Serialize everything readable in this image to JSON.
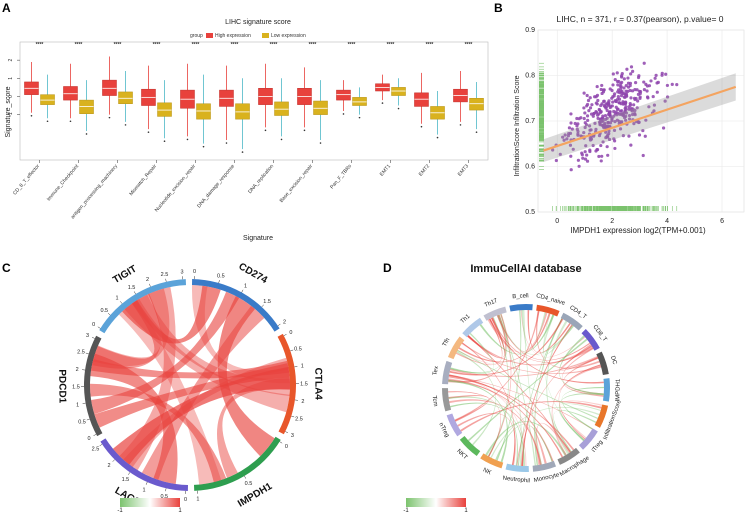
{
  "panels": {
    "a": "A",
    "b": "B",
    "c": "C",
    "d": "D"
  },
  "chart_data": [
    {
      "id": "A",
      "type": "box",
      "title": "LIHC signature score",
      "xlabel": "Signature",
      "ylabel": "Signature_score",
      "legend_title": "group",
      "ylim": [
        -3.5,
        3
      ],
      "yticks": [
        "-1",
        "0",
        "1",
        "2"
      ],
      "legend_position": "top",
      "significance": "****",
      "categories": [
        "CD_8_T_effector",
        "Immune_Checkpoint",
        "antigen_processing_machinery",
        "Mismatch_Repair",
        "Nucleotide_excision_repair",
        "DNA_damage_response",
        "DNA_replication",
        "Base_excision_repair",
        "Pan_F_TBRs",
        "EMT1",
        "EMT2",
        "EMT3"
      ],
      "series": [
        {
          "name": "High expression",
          "color": "#E8413C",
          "values": [
            {
              "q1": 0.1,
              "median": 0.45,
              "q3": 0.8,
              "lo": -0.9,
              "hi": 1.9
            },
            {
              "q1": -0.2,
              "median": 0.15,
              "q3": 0.55,
              "lo": -1.2,
              "hi": 1.8
            },
            {
              "q1": 0.05,
              "median": 0.45,
              "q3": 0.9,
              "lo": -1.0,
              "hi": 2.2
            },
            {
              "q1": -0.5,
              "median": -0.05,
              "q3": 0.4,
              "lo": -1.8,
              "hi": 1.7
            },
            {
              "q1": -0.65,
              "median": -0.15,
              "q3": 0.35,
              "lo": -2.2,
              "hi": 1.8
            },
            {
              "q1": -0.55,
              "median": -0.1,
              "q3": 0.35,
              "lo": -2.4,
              "hi": 1.7
            },
            {
              "q1": -0.45,
              "median": 0.0,
              "q3": 0.45,
              "lo": -1.7,
              "hi": 1.8
            },
            {
              "q1": -0.45,
              "median": 0.0,
              "q3": 0.45,
              "lo": -1.7,
              "hi": 1.6
            },
            {
              "q1": -0.2,
              "median": 0.1,
              "q3": 0.35,
              "lo": -0.8,
              "hi": 0.9
            },
            {
              "q1": 0.3,
              "median": 0.5,
              "q3": 0.7,
              "lo": -0.2,
              "hi": 1.2
            },
            {
              "q1": -0.55,
              "median": -0.15,
              "q3": 0.2,
              "lo": -1.5,
              "hi": 1.3
            },
            {
              "q1": -0.3,
              "median": 0.05,
              "q3": 0.4,
              "lo": -1.4,
              "hi": 1.4
            }
          ]
        },
        {
          "name": "Low expression",
          "color": "#D9B21E",
          "values": [
            {
              "q1": -0.45,
              "median": -0.2,
              "q3": 0.1,
              "lo": -1.2,
              "hi": 1.2
            },
            {
              "q1": -0.95,
              "median": -0.55,
              "q3": -0.2,
              "lo": -1.9,
              "hi": 0.9
            },
            {
              "q1": -0.4,
              "median": -0.1,
              "q3": 0.25,
              "lo": -1.4,
              "hi": 1.4
            },
            {
              "q1": -1.1,
              "median": -0.75,
              "q3": -0.35,
              "lo": -2.3,
              "hi": 0.9
            },
            {
              "q1": -1.25,
              "median": -0.8,
              "q3": -0.4,
              "lo": -2.6,
              "hi": 1.2
            },
            {
              "q1": -1.25,
              "median": -0.85,
              "q3": -0.4,
              "lo": -2.9,
              "hi": 1.0
            },
            {
              "q1": -1.05,
              "median": -0.7,
              "q3": -0.3,
              "lo": -2.2,
              "hi": 1.0
            },
            {
              "q1": -1.0,
              "median": -0.65,
              "q3": -0.25,
              "lo": -2.4,
              "hi": 0.9
            },
            {
              "q1": -0.5,
              "median": -0.3,
              "q3": -0.05,
              "lo": -1.0,
              "hi": 0.5
            },
            {
              "q1": 0.05,
              "median": 0.3,
              "q3": 0.5,
              "lo": -0.5,
              "hi": 1.0
            },
            {
              "q1": -1.25,
              "median": -0.9,
              "q3": -0.55,
              "lo": -2.1,
              "hi": 0.3
            },
            {
              "q1": -0.75,
              "median": -0.4,
              "q3": -0.1,
              "lo": -1.8,
              "hi": 0.8
            }
          ]
        }
      ]
    },
    {
      "id": "B",
      "type": "scatter",
      "title": "LIHC, n = 371, r = 0.37(pearson), p.value= 0",
      "xlabel": "IMPDH1 expression log2(TPM+0.001)",
      "ylabel": "InfiltrationScore Infiltration Score",
      "xlim": [
        -0.7,
        6.8
      ],
      "ylim": [
        0.5,
        0.9
      ],
      "xticks": [
        "0",
        "2",
        "4",
        "6"
      ],
      "yticks": [
        "0.5",
        "0.6",
        "0.7",
        "0.8",
        "0.9"
      ],
      "grid": true,
      "point_color": "#8E44AD",
      "fit_color": "#F4A460",
      "fit": {
        "intercept": 0.66,
        "slope": 0.0135
      },
      "n": 371
    },
    {
      "id": "C",
      "type": "chord",
      "sectors": [
        {
          "name": "CD274",
          "color": "#3A7BC8",
          "ticks": [
            "0",
            "0.5",
            "1",
            "1.5",
            "2"
          ]
        },
        {
          "name": "CTLA4",
          "color": "#E8562A",
          "ticks": [
            "0",
            "0.5",
            "1",
            "1.5",
            "2",
            "2.5",
            "3"
          ]
        },
        {
          "name": "IMPDH1",
          "color": "#2E9E4F",
          "ticks": [
            "0",
            "0.5",
            "1"
          ]
        },
        {
          "name": "LAG3",
          "color": "#6A5ACD",
          "ticks": [
            "0",
            "0.5",
            "1",
            "1.5",
            "2",
            "2.5"
          ]
        },
        {
          "name": "PDCD1",
          "color": "#555555",
          "ticks": [
            "0",
            "0.5",
            "1",
            "1.5",
            "2",
            "2.5",
            "3"
          ]
        },
        {
          "name": "TIGIT",
          "color": "#5BA3D9",
          "ticks": [
            "0",
            "0.5",
            "1",
            "1.5",
            "2",
            "2.5",
            "3"
          ]
        }
      ],
      "legend": {
        "min": "-1",
        "max": "1",
        "low_color": "#7CC36E",
        "high_color": "#E8413C"
      }
    },
    {
      "id": "D",
      "type": "chord",
      "title": "ImmuCellAI database",
      "sectors": [
        {
          "name": "B_cell",
          "color": "#3A7BC8"
        },
        {
          "name": "CD4_naive",
          "color": "#E8562A"
        },
        {
          "name": "CD4_T",
          "color": "#9AA6B8"
        },
        {
          "name": "CD8_T",
          "color": "#6A5ACD"
        },
        {
          "name": "DC",
          "color": "#555555"
        },
        {
          "name": "IMPDH1",
          "color": "#5BA3D9"
        },
        {
          "name": "InfiltrationScore",
          "color": "#E8762A"
        },
        {
          "name": "iTreg",
          "color": "#A8A0D8"
        },
        {
          "name": "Macrophage",
          "color": "#888888"
        },
        {
          "name": "Monocyte",
          "color": "#A0A8B8"
        },
        {
          "name": "Neutrophil",
          "color": "#9AC8E8"
        },
        {
          "name": "NK",
          "color": "#F0A050"
        },
        {
          "name": "NKT",
          "color": "#5CB85C"
        },
        {
          "name": "nTreg",
          "color": "#B0A8E0"
        },
        {
          "name": "Tcm",
          "color": "#999999"
        },
        {
          "name": "Tex",
          "color": "#A8AEC0"
        },
        {
          "name": "Tfh",
          "color": "#F4B880"
        },
        {
          "name": "Th1",
          "color": "#AFC8E8"
        },
        {
          "name": "Th17",
          "color": "#C0C0D0"
        }
      ],
      "legend": {
        "min": "-1",
        "max": "1",
        "low_color": "#7CC36E",
        "high_color": "#E8413C"
      }
    }
  ]
}
